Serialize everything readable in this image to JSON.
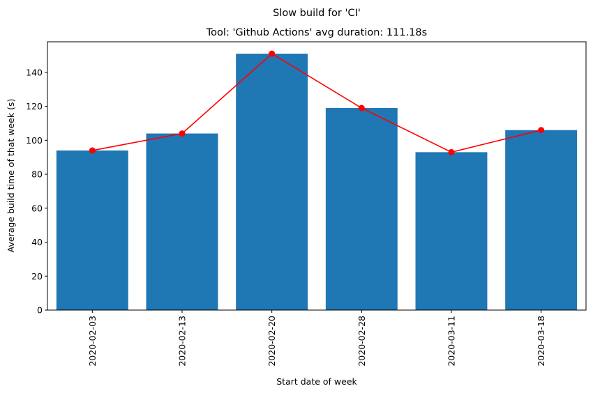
{
  "chart_data": {
    "type": "bar",
    "suptitle": "Slow build for 'CI'",
    "title": "Tool: 'Github Actions' avg duration: 111.18s",
    "xlabel": "Start date of week",
    "ylabel": "Average build time of that week (s)",
    "categories": [
      "2020-02-03",
      "2020-02-13",
      "2020-02-20",
      "2020-02-28",
      "2020-03-11",
      "2020-03-18"
    ],
    "values": [
      94,
      104,
      151,
      119,
      93,
      106
    ],
    "line_values": [
      94,
      104,
      151,
      119,
      93,
      106
    ],
    "ylim": [
      0,
      158
    ],
    "yticks": [
      0,
      20,
      40,
      60,
      80,
      100,
      120,
      140
    ],
    "grid": false,
    "bar_color": "#1f77b4",
    "line_color": "#ff0000"
  }
}
